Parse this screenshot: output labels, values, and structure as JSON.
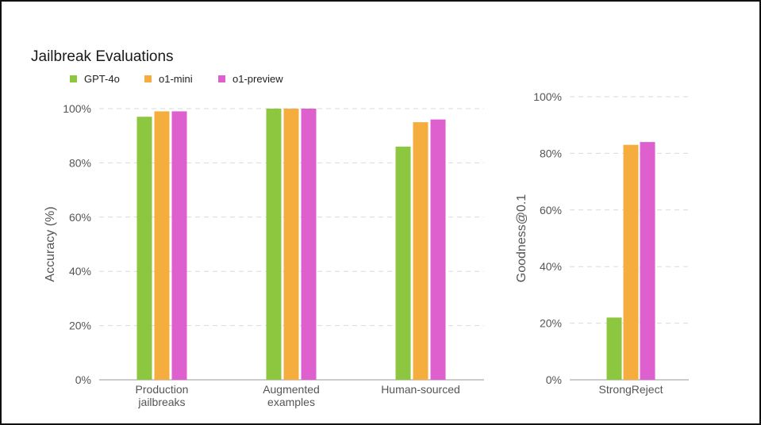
{
  "title": "Jailbreak Evaluations",
  "legend": [
    {
      "label": "GPT-4o",
      "color": "#8dc63f"
    },
    {
      "label": "o1-mini",
      "color": "#f5ae3e"
    },
    {
      "label": "o1-preview",
      "color": "#de5fce"
    }
  ],
  "chart_data": [
    {
      "type": "bar",
      "ylabel": "Accuracy (%)",
      "ylim": [
        0,
        100
      ],
      "yticks": [
        "0%",
        "20%",
        "40%",
        "60%",
        "80%",
        "100%"
      ],
      "grid": true,
      "categories": [
        [
          "Production",
          "jailbreaks"
        ],
        [
          "Augmented",
          "examples"
        ],
        [
          "Human-sourced"
        ]
      ],
      "series": [
        {
          "name": "GPT-4o",
          "color": "#8dc63f",
          "values": [
            97,
            100,
            86
          ]
        },
        {
          "name": "o1-mini",
          "color": "#f5ae3e",
          "values": [
            99,
            100,
            95
          ]
        },
        {
          "name": "o1-preview",
          "color": "#de5fce",
          "values": [
            99,
            100,
            96
          ]
        }
      ]
    },
    {
      "type": "bar",
      "ylabel": "Goodness@0.1",
      "ylim": [
        0,
        100
      ],
      "yticks": [
        "0%",
        "20%",
        "40%",
        "60%",
        "80%",
        "100%"
      ],
      "grid": true,
      "categories": [
        [
          "StrongReject"
        ]
      ],
      "series": [
        {
          "name": "GPT-4o",
          "color": "#8dc63f",
          "values": [
            22
          ]
        },
        {
          "name": "o1-mini",
          "color": "#f5ae3e",
          "values": [
            83
          ]
        },
        {
          "name": "o1-preview",
          "color": "#de5fce",
          "values": [
            84
          ]
        }
      ]
    }
  ]
}
